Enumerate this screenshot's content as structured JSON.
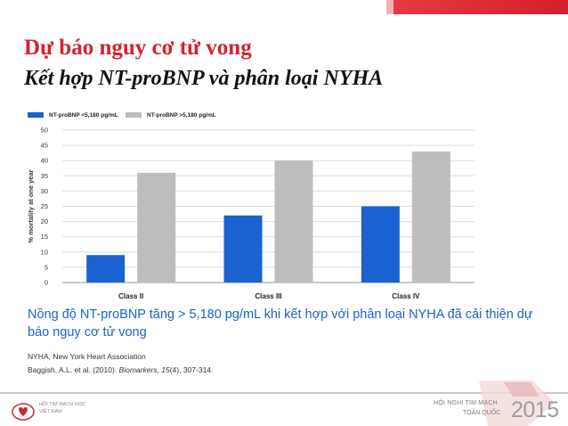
{
  "slide": {
    "title": "Dự báo nguy cơ tử vong",
    "subtitle": "Kết hợp NT-proBNP và phân loại NYHA",
    "conclusion": "Nồng độ NT-proBNP tăng > 5,180 pg/mL khi kết hợp với phân loại NYHA đã cải thiện dự báo nguy cơ tử vong",
    "abbreviation": "NYHA, New York Heart Association",
    "citation_authors": "Baggish, A.L. et al. (2010). ",
    "citation_journal": "Biomarkers, 15",
    "citation_rest": "(4), 307-314."
  },
  "footer": {
    "left_logo_line1": "HỘI TIM MẠCH HỌC",
    "left_logo_line2": "VIỆT NAM",
    "right_logo_line1": "HỘI NGHỊ TIM MẠCH",
    "right_logo_line2": "TOÀN QUỐC",
    "right_logo_year": "2015"
  },
  "colors": {
    "accent_red": "#d3232f",
    "series_low": "#1a62d2",
    "series_high": "#bdbdbd",
    "conclusion_blue": "#1b63c6"
  },
  "chart_data": {
    "type": "bar",
    "categories": [
      "Class II",
      "Class III",
      "Class IV"
    ],
    "series": [
      {
        "name": "NT-proBNP <5,180 pg/mL",
        "values": [
          9,
          22,
          25
        ],
        "color": "#1a62d2"
      },
      {
        "name": "NT-proBNP >5,180 pg/mL",
        "values": [
          36,
          40,
          43
        ],
        "color": "#bdbdbd"
      }
    ],
    "ylabel": "% mortality at one year",
    "xlabel": "",
    "ylim": [
      0,
      50
    ],
    "yticks": [
      0,
      5,
      10,
      15,
      20,
      25,
      30,
      35,
      40,
      45,
      50
    ],
    "grid": true,
    "legend_position": "top-left"
  }
}
